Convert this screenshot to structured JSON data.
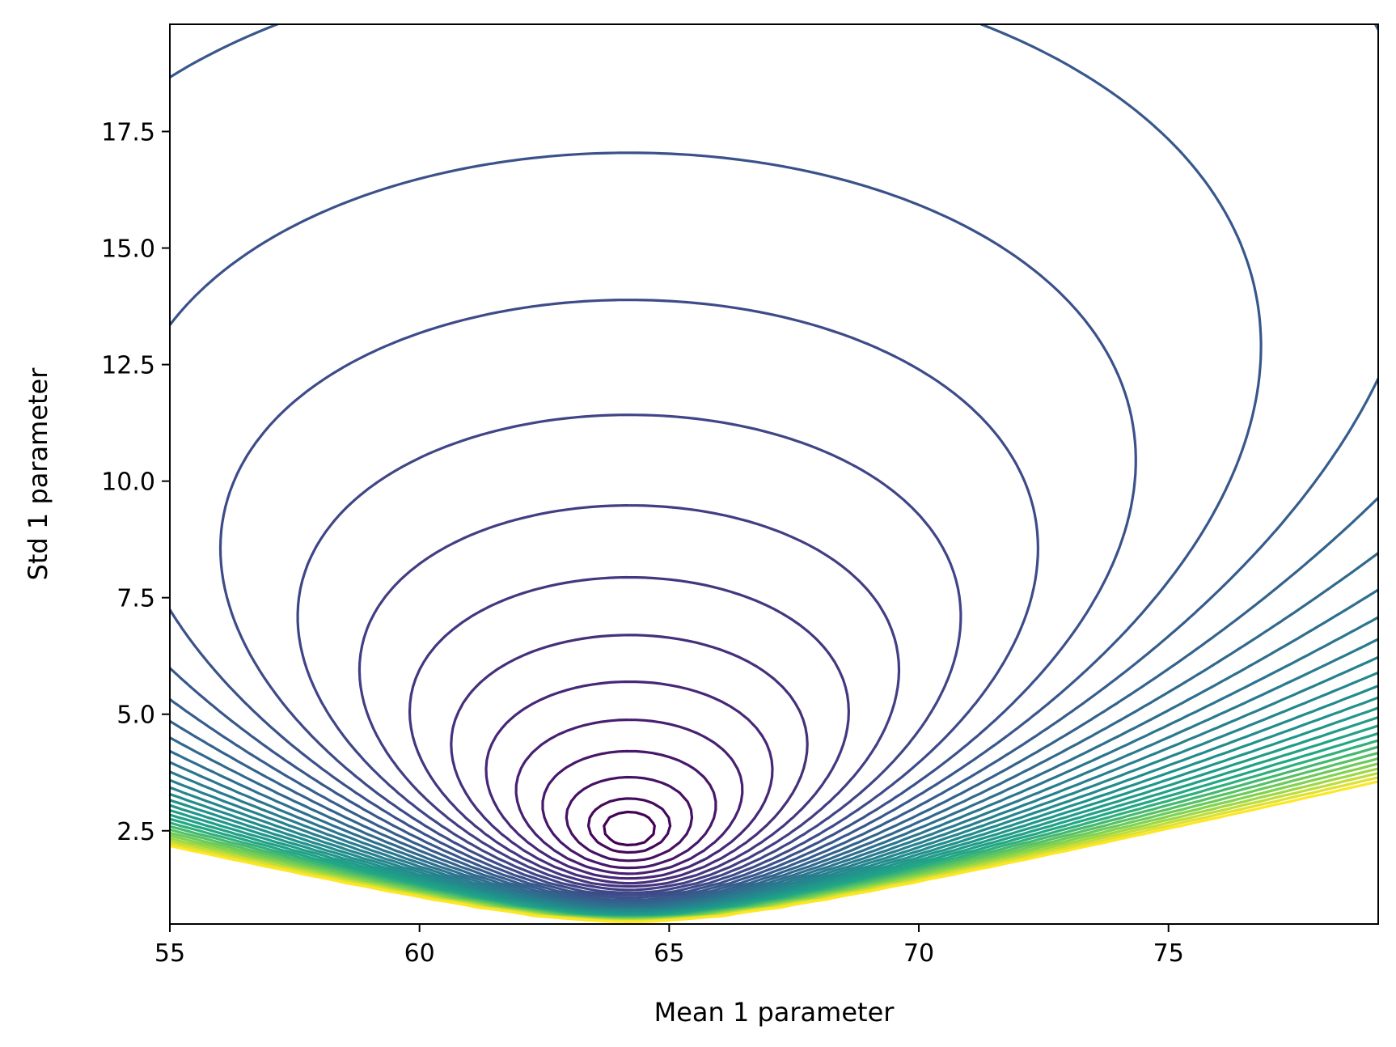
{
  "chart_data": {
    "type": "contour",
    "title": "",
    "xlabel": "Mean 1 parameter",
    "ylabel": "Std 1 parameter",
    "xlim": [
      55,
      79.2
    ],
    "ylim": [
      0.5,
      19.8
    ],
    "grid": false,
    "legend": "none",
    "colormap": "viridis",
    "x_ticks": [
      55,
      60,
      65,
      70,
      75
    ],
    "x_tick_labels": [
      "55",
      "60",
      "65",
      "70",
      "75"
    ],
    "y_ticks": [
      2.5,
      5.0,
      7.5,
      10.0,
      12.5,
      15.0,
      17.5
    ],
    "y_tick_labels": [
      "2.5",
      "5.0",
      "7.5",
      "10.0",
      "12.5",
      "15.0",
      "17.5"
    ],
    "minimum": {
      "mean": 64.2,
      "std": 2.5
    },
    "level_count": 36
  }
}
